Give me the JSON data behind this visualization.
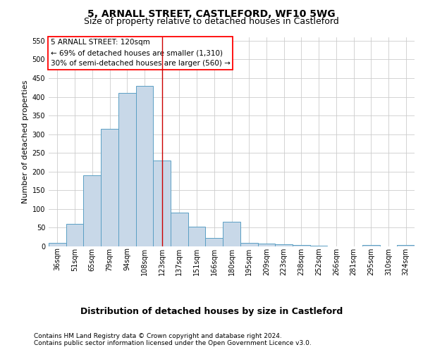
{
  "title": "5, ARNALL STREET, CASTLEFORD, WF10 5WG",
  "subtitle": "Size of property relative to detached houses in Castleford",
  "xlabel": "Distribution of detached houses by size in Castleford",
  "ylabel": "Number of detached properties",
  "footer_line1": "Contains HM Land Registry data © Crown copyright and database right 2024.",
  "footer_line2": "Contains public sector information licensed under the Open Government Licence v3.0.",
  "annotation_line1": "5 ARNALL STREET: 120sqm",
  "annotation_line2": "← 69% of detached houses are smaller (1,310)",
  "annotation_line3": "30% of semi-detached houses are larger (560) →",
  "bar_labels": [
    "36sqm",
    "51sqm",
    "65sqm",
    "79sqm",
    "94sqm",
    "108sqm",
    "123sqm",
    "137sqm",
    "151sqm",
    "166sqm",
    "180sqm",
    "195sqm",
    "209sqm",
    "223sqm",
    "238sqm",
    "252sqm",
    "266sqm",
    "281sqm",
    "295sqm",
    "310sqm",
    "324sqm"
  ],
  "bar_values": [
    10,
    60,
    190,
    315,
    410,
    430,
    230,
    90,
    52,
    22,
    65,
    10,
    8,
    5,
    3,
    1,
    0,
    0,
    3,
    0,
    3
  ],
  "bar_color": "#c8d8e8",
  "bar_edge_color": "#5a9fc4",
  "vertical_line_color": "#cc0000",
  "vertical_line_x": 6,
  "ylim_max": 560,
  "yticks": [
    0,
    50,
    100,
    150,
    200,
    250,
    300,
    350,
    400,
    450,
    500,
    550
  ],
  "background_color": "#ffffff",
  "grid_color": "#cccccc",
  "title_fontsize": 10,
  "subtitle_fontsize": 9,
  "ylabel_fontsize": 8,
  "xlabel_fontsize": 9,
  "tick_fontsize": 7,
  "annotation_fontsize": 7.5,
  "footer_fontsize": 6.5
}
